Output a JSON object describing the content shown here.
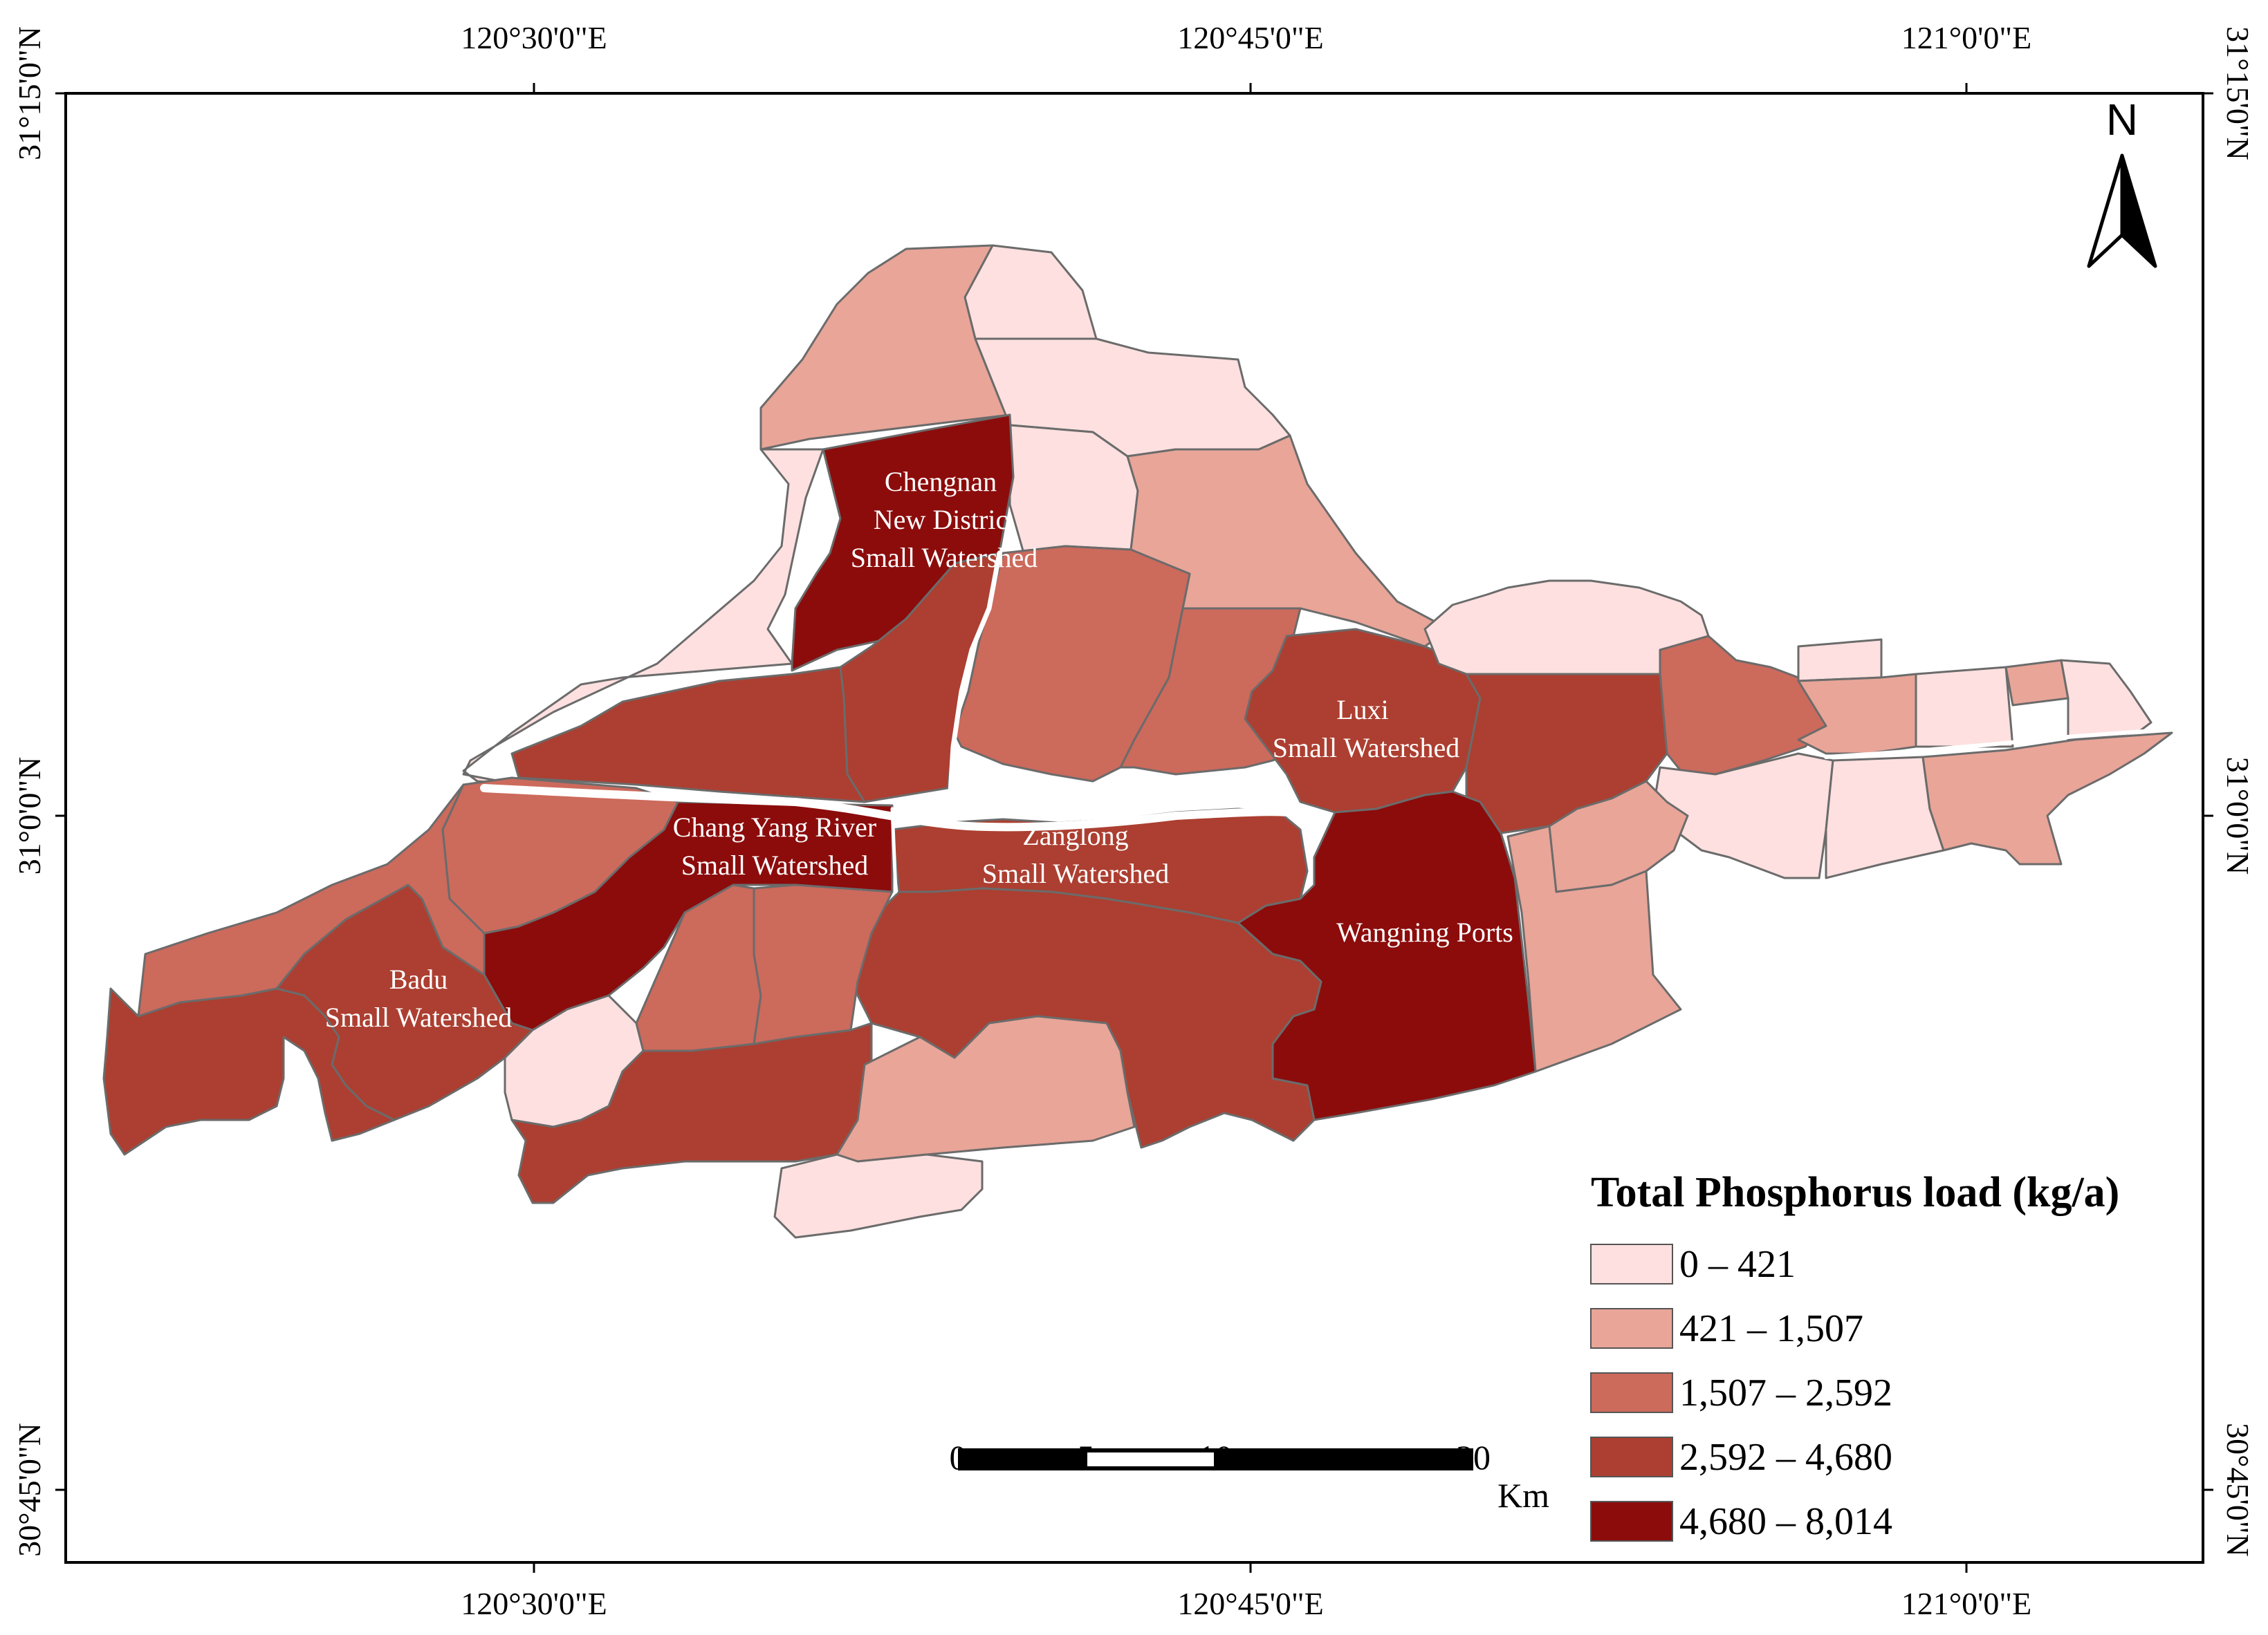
{
  "map": {
    "ticks_top": [
      "120°30'0\"E",
      "120°45'0\"E",
      "121°0'0\"E"
    ],
    "ticks_bottom": [
      "120°30'0\"E",
      "120°45'0\"E",
      "121°0'0\"E"
    ],
    "ticks_left": [
      "31°15'0\"N",
      "31°0'0\"N",
      "30°45'0\"N"
    ],
    "ticks_right": [
      "31°15'0\"N",
      "31°0'0\"N",
      "30°45'0\"N"
    ],
    "north_label": "N",
    "region_labels": {
      "chengnan": [
        "Chengnan",
        "New Distric",
        "Small Watershed"
      ],
      "luxi": [
        "Luxi",
        "Small Watershed"
      ],
      "changyang": [
        "Chang Yang River",
        "Small Watershed"
      ],
      "zanglong": [
        "Zanglong",
        "Small Watershed"
      ],
      "wangning": [
        "Wangning Ports"
      ],
      "badu": [
        "Badu",
        "Small Watershed"
      ]
    }
  },
  "legend": {
    "title": "Total Phosphorus load (kg/a)",
    "classes": [
      {
        "label": "0 – 421",
        "color": "#fde0df"
      },
      {
        "label": "421 – 1,507",
        "color": "#e8a598"
      },
      {
        "label": "1,507 – 2,592",
        "color": "#cc6a5c"
      },
      {
        "label": "2,592 – 4,680",
        "color": "#ac3f31"
      },
      {
        "label": "4,680 – 8,014",
        "color": "#8c0c0c"
      }
    ]
  },
  "scale_bar": {
    "labels": [
      "0",
      "5",
      "10",
      "20"
    ],
    "unit": "Km"
  }
}
